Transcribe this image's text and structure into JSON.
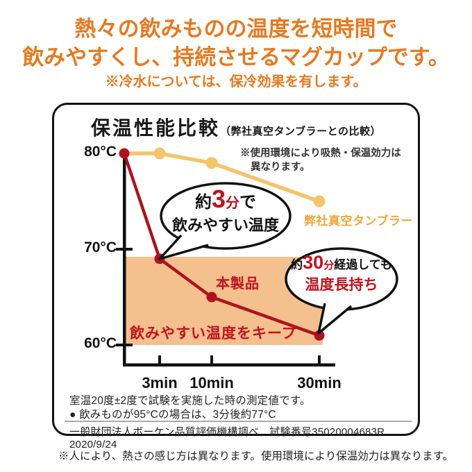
{
  "header": {
    "line1": "熱々の飲みものの温度を短時間で",
    "line2": "飲みやすくし、持続させるマグカップです。",
    "note": "※冷水については、保冷効果を有します。"
  },
  "panel": {
    "title": "保温性能比較",
    "title_sub": "（弊社真空タンブラーとの比較）",
    "disclaimer_line1": "※使用環境により吸熱・保温効力は",
    "disclaimer_line2": "異なります。",
    "legend_tumbler": "弊社真空タンブラー",
    "series_product_label": "本製品",
    "band_label": "飲みやすい温度をキープ",
    "bubble_3min": {
      "prefix": "約",
      "number": "3",
      "unit": "分",
      "suffix": "で",
      "line2": "飲みやすい温度"
    },
    "bubble_30min": {
      "prefix": "約",
      "number": "30",
      "unit": "分",
      "suffix": "経過しても",
      "line2": "温度長持ち"
    },
    "footnotes": {
      "line1": "室温20度±2度で試験を実施した時の測定値です。",
      "line2": "● 飲みものが95°Cの場合は、3分後約77°C",
      "agency": "一般財団法人ボーケン品質評価機構調べ　試験番号35020004683R　2020/9/24"
    }
  },
  "footer_note": "※人により、熱さの感じ方は異なります。使用環境により保温効力は異なります。",
  "colors": {
    "header_orange": "#e8791f",
    "product_red_line": "#b0111b",
    "red_text": "#c3121c",
    "tumbler_yellow_line": "#f6c469",
    "legend_yellow_text": "#efa83c",
    "band_orange": "#f3c08e",
    "axis_black": "#111111"
  },
  "chart_data": {
    "type": "line",
    "title": "保温性能比較（弊社真空タンブラーとの比較）",
    "x_unit": "min",
    "x": [
      0,
      3,
      10,
      30
    ],
    "x_tick_labels": [
      "3min",
      "10min",
      "30min"
    ],
    "y_ticks": [
      80,
      70,
      60
    ],
    "y_tick_labels": [
      "80°C",
      "70°C",
      "60°C"
    ],
    "ylim": [
      58,
      82
    ],
    "grid": false,
    "legend_position": "right-of-line",
    "series": [
      {
        "name": "本製品",
        "color": "#b0111b",
        "values": [
          80,
          69,
          65,
          61
        ]
      },
      {
        "name": "弊社真空タンブラー",
        "color": "#f6c469",
        "values": [
          80,
          80,
          79,
          75
        ]
      }
    ],
    "band": {
      "y_from": 60,
      "y_to": 70,
      "color": "#f3c08e",
      "label": "飲みやすい温度をキープ"
    },
    "annotations": [
      {
        "target_min": 3,
        "text": "約3分で飲みやすい温度"
      },
      {
        "target_min": 30,
        "text": "約30分経過しても温度長持ち"
      }
    ]
  }
}
